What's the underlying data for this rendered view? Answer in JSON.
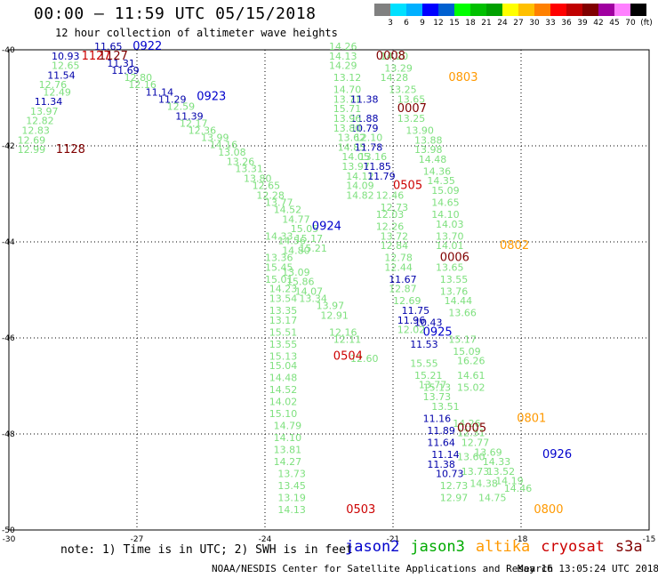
{
  "header": {
    "title": "00:00 — 11:59 UTC 05/15/2018",
    "subtitle": "12 hour collection of altimeter wave heights"
  },
  "colorbar": {
    "colors": [
      "#808080",
      "#00e0ff",
      "#00b0ff",
      "#0000ff",
      "#0060d0",
      "#00ff00",
      "#00c000",
      "#00a000",
      "#ffff00",
      "#ffc000",
      "#ff8000",
      "#ff0000",
      "#c00000",
      "#800000",
      "#a000a0",
      "#ff80ff",
      "#000000"
    ],
    "labels": [
      "3",
      "6",
      "9",
      "12",
      "15",
      "18",
      "21",
      "24",
      "27",
      "30",
      "33",
      "36",
      "39",
      "42",
      "45",
      "70",
      "(ft)"
    ]
  },
  "axes": {
    "lat_ticks": [
      "-40",
      "-42",
      "-44",
      "-46",
      "-48",
      "-50"
    ],
    "lon_ticks": [
      "-30",
      "-27",
      "-24",
      "-21",
      "-18",
      "-15"
    ]
  },
  "satellite_colors": {
    "jason2": "#0000cc",
    "jason3": "#00aa00",
    "altika": "#ff9900",
    "cryosat": "#cc0000",
    "s3a": "#800000",
    "swh": "#7ee07e",
    "swh_blue": "#0000aa"
  },
  "swh_points": [
    {
      "v": "10.93",
      "lon": -29.0,
      "lat": -40.2,
      "c": "swh_blue"
    },
    {
      "v": "11.65",
      "lon": -28.0,
      "lat": -40.0,
      "c": "swh_blue"
    },
    {
      "v": "12.65",
      "lon": -29.0,
      "lat": -40.4,
      "c": "swh"
    },
    {
      "v": "11.31",
      "lon": -27.7,
      "lat": -40.35,
      "c": "swh_blue"
    },
    {
      "v": "11.54",
      "lon": -29.1,
      "lat": -40.6,
      "c": "swh_blue"
    },
    {
      "v": "11.69",
      "lon": -27.6,
      "lat": -40.5,
      "c": "swh_blue"
    },
    {
      "v": "12.76",
      "lon": -29.3,
      "lat": -40.8,
      "c": "swh"
    },
    {
      "v": "12.80",
      "lon": -27.3,
      "lat": -40.65,
      "c": "swh"
    },
    {
      "v": "12.49",
      "lon": -29.2,
      "lat": -40.95,
      "c": "swh"
    },
    {
      "v": "12.16",
      "lon": -27.2,
      "lat": -40.8,
      "c": "swh"
    },
    {
      "v": "11.14",
      "lon": -26.8,
      "lat": -40.95,
      "c": "swh_blue"
    },
    {
      "v": "11.34",
      "lon": -29.4,
      "lat": -41.15,
      "c": "swh_blue"
    },
    {
      "v": "11.29",
      "lon": -26.5,
      "lat": -41.1,
      "c": "swh_blue"
    },
    {
      "v": "13.97",
      "lon": -29.5,
      "lat": -41.35,
      "c": "swh"
    },
    {
      "v": "12.59",
      "lon": -26.3,
      "lat": -41.25,
      "c": "swh"
    },
    {
      "v": "11.39",
      "lon": -26.1,
      "lat": -41.45,
      "c": "swh_blue"
    },
    {
      "v": "12.82",
      "lon": -29.6,
      "lat": -41.55,
      "c": "swh"
    },
    {
      "v": "12.17",
      "lon": -26.0,
      "lat": -41.6,
      "c": "swh"
    },
    {
      "v": "12.83",
      "lon": -29.7,
      "lat": -41.75,
      "c": "swh"
    },
    {
      "v": "12.36",
      "lon": -25.8,
      "lat": -41.75,
      "c": "swh"
    },
    {
      "v": "12.69",
      "lon": -29.8,
      "lat": -41.95,
      "c": "swh"
    },
    {
      "v": "13.99",
      "lon": -25.5,
      "lat": -41.9,
      "c": "swh"
    },
    {
      "v": "12.99",
      "lon": -29.8,
      "lat": -42.15,
      "c": "swh"
    },
    {
      "v": "14.16",
      "lon": -25.3,
      "lat": -42.05,
      "c": "swh"
    },
    {
      "v": "13.08",
      "lon": -25.1,
      "lat": -42.2,
      "c": "swh"
    },
    {
      "v": "13.26",
      "lon": -24.9,
      "lat": -42.4,
      "c": "swh"
    },
    {
      "v": "13.31",
      "lon": -24.7,
      "lat": -42.55,
      "c": "swh"
    },
    {
      "v": "13.80",
      "lon": -24.5,
      "lat": -42.75,
      "c": "swh"
    },
    {
      "v": "12.65",
      "lon": -24.3,
      "lat": -42.9,
      "c": "swh"
    },
    {
      "v": "12.28",
      "lon": -24.2,
      "lat": -43.1,
      "c": "swh"
    },
    {
      "v": "13.77",
      "lon": -24.0,
      "lat": -43.25,
      "c": "swh"
    },
    {
      "v": "14.52",
      "lon": -23.8,
      "lat": -43.4,
      "c": "swh"
    },
    {
      "v": "14.77",
      "lon": -23.6,
      "lat": -43.6,
      "c": "swh"
    },
    {
      "v": "15.05",
      "lon": -23.4,
      "lat": -43.8,
      "c": "swh"
    },
    {
      "v": "15.17",
      "lon": -23.3,
      "lat": -44.0,
      "c": "swh"
    },
    {
      "v": "15.21",
      "lon": -23.2,
      "lat": -44.2,
      "c": "swh"
    },
    {
      "v": "14.26",
      "lon": -22.5,
      "lat": -40.0,
      "c": "swh"
    },
    {
      "v": "14.13",
      "lon": -22.5,
      "lat": -40.2,
      "c": "swh"
    },
    {
      "v": "14.20",
      "lon": -21.3,
      "lat": -40.2,
      "c": "swh"
    },
    {
      "v": "14.29",
      "lon": -22.5,
      "lat": -40.4,
      "c": "swh"
    },
    {
      "v": "13.29",
      "lon": -21.2,
      "lat": -40.45,
      "c": "swh"
    },
    {
      "v": "13.12",
      "lon": -22.4,
      "lat": -40.65,
      "c": "swh"
    },
    {
      "v": "14.28",
      "lon": -21.3,
      "lat": -40.65,
      "c": "swh"
    },
    {
      "v": "14.70",
      "lon": -22.4,
      "lat": -40.9,
      "c": "swh"
    },
    {
      "v": "13.25",
      "lon": -21.1,
      "lat": -40.9,
      "c": "swh"
    },
    {
      "v": "13.71",
      "lon": -22.4,
      "lat": -41.1,
      "c": "swh"
    },
    {
      "v": "11.38",
      "lon": -22.0,
      "lat": -41.1,
      "c": "swh_blue"
    },
    {
      "v": "13.65",
      "lon": -20.9,
      "lat": -41.1,
      "c": "swh"
    },
    {
      "v": "15.71",
      "lon": -22.4,
      "lat": -41.3,
      "c": "swh"
    },
    {
      "v": "11.88",
      "lon": -22.0,
      "lat": -41.5,
      "c": "swh_blue"
    },
    {
      "v": "13.25",
      "lon": -20.9,
      "lat": -41.5,
      "c": "swh"
    },
    {
      "v": "13.96",
      "lon": -22.4,
      "lat": -41.5,
      "c": "swh"
    },
    {
      "v": "10.79",
      "lon": -22.0,
      "lat": -41.7,
      "c": "swh_blue"
    },
    {
      "v": "13.80",
      "lon": -22.4,
      "lat": -41.7,
      "c": "swh"
    },
    {
      "v": "13.90",
      "lon": -20.7,
      "lat": -41.75,
      "c": "swh"
    },
    {
      "v": "13.62",
      "lon": -22.3,
      "lat": -41.9,
      "c": "swh"
    },
    {
      "v": "12.10",
      "lon": -21.9,
      "lat": -41.9,
      "c": "swh"
    },
    {
      "v": "13.88",
      "lon": -20.5,
      "lat": -41.95,
      "c": "swh"
    },
    {
      "v": "14.85",
      "lon": -22.3,
      "lat": -42.1,
      "c": "swh"
    },
    {
      "v": "11.78",
      "lon": -21.9,
      "lat": -42.1,
      "c": "swh_blue"
    },
    {
      "v": "13.98",
      "lon": -20.5,
      "lat": -42.15,
      "c": "swh"
    },
    {
      "v": "14.05",
      "lon": -22.2,
      "lat": -42.3,
      "c": "swh"
    },
    {
      "v": "13.16",
      "lon": -21.8,
      "lat": -42.3,
      "c": "swh"
    },
    {
      "v": "14.48",
      "lon": -20.4,
      "lat": -42.35,
      "c": "swh"
    },
    {
      "v": "13.97",
      "lon": -22.2,
      "lat": -42.5,
      "c": "swh"
    },
    {
      "v": "11.85",
      "lon": -21.7,
      "lat": -42.5,
      "c": "swh_blue"
    },
    {
      "v": "14.36",
      "lon": -20.3,
      "lat": -42.6,
      "c": "swh"
    },
    {
      "v": "14.12",
      "lon": -22.1,
      "lat": -42.7,
      "c": "swh"
    },
    {
      "v": "11.79",
      "lon": -21.6,
      "lat": -42.7,
      "c": "swh_blue"
    },
    {
      "v": "14.35",
      "lon": -20.2,
      "lat": -42.8,
      "c": "swh"
    },
    {
      "v": "14.09",
      "lon": -22.1,
      "lat": -42.9,
      "c": "swh"
    },
    {
      "v": "15.09",
      "lon": -20.1,
      "lat": -43.0,
      "c": "swh"
    },
    {
      "v": "14.82",
      "lon": -22.1,
      "lat": -43.1,
      "c": "swh"
    },
    {
      "v": "12.46",
      "lon": -21.4,
      "lat": -43.1,
      "c": "swh"
    },
    {
      "v": "14.65",
      "lon": -20.1,
      "lat": -43.25,
      "c": "swh"
    },
    {
      "v": "12.73",
      "lon": -21.3,
      "lat": -43.35,
      "c": "swh"
    },
    {
      "v": "14.10",
      "lon": -20.1,
      "lat": -43.5,
      "c": "swh"
    },
    {
      "v": "12.03",
      "lon": -21.4,
      "lat": -43.5,
      "c": "swh"
    },
    {
      "v": "14.03",
      "lon": -20.0,
      "lat": -43.7,
      "c": "swh"
    },
    {
      "v": "12.26",
      "lon": -21.4,
      "lat": -43.75,
      "c": "swh"
    },
    {
      "v": "13.72",
      "lon": -21.3,
      "lat": -43.95,
      "c": "swh"
    },
    {
      "v": "13.70",
      "lon": -20.0,
      "lat": -43.95,
      "c": "swh"
    },
    {
      "v": "12.84",
      "lon": -21.3,
      "lat": -44.15,
      "c": "swh"
    },
    {
      "v": "14.01",
      "lon": -20.0,
      "lat": -44.15,
      "c": "swh"
    },
    {
      "v": "12.78",
      "lon": -21.2,
      "lat": -44.4,
      "c": "swh"
    },
    {
      "v": "12.44",
      "lon": -21.2,
      "lat": -44.6,
      "c": "swh"
    },
    {
      "v": "13.65",
      "lon": -20.0,
      "lat": -44.6,
      "c": "swh"
    },
    {
      "v": "11.67",
      "lon": -21.1,
      "lat": -44.85,
      "c": "swh_blue"
    },
    {
      "v": "13.55",
      "lon": -19.9,
      "lat": -44.85,
      "c": "swh"
    },
    {
      "v": "12.87",
      "lon": -21.1,
      "lat": -45.05,
      "c": "swh"
    },
    {
      "v": "13.76",
      "lon": -19.9,
      "lat": -45.1,
      "c": "swh"
    },
    {
      "v": "12.69",
      "lon": -21.0,
      "lat": -45.3,
      "c": "swh"
    },
    {
      "v": "14.44",
      "lon": -19.8,
      "lat": -45.3,
      "c": "swh"
    },
    {
      "v": "11.75",
      "lon": -20.8,
      "lat": -45.5,
      "c": "swh_blue"
    },
    {
      "v": "13.66",
      "lon": -19.7,
      "lat": -45.55,
      "c": "swh"
    },
    {
      "v": "11.96",
      "lon": -20.9,
      "lat": -45.7,
      "c": "swh_blue"
    },
    {
      "v": "10.43",
      "lon": -20.5,
      "lat": -45.75,
      "c": "swh_blue"
    },
    {
      "v": "12.02",
      "lon": -20.9,
      "lat": -45.9,
      "c": "swh"
    },
    {
      "v": "15.17",
      "lon": -19.7,
      "lat": -46.1,
      "c": "swh"
    },
    {
      "v": "11.53",
      "lon": -20.6,
      "lat": -46.2,
      "c": "swh_blue"
    },
    {
      "v": "15.09",
      "lon": -19.6,
      "lat": -46.35,
      "c": "swh"
    },
    {
      "v": "15.55",
      "lon": -20.6,
      "lat": -46.6,
      "c": "swh"
    },
    {
      "v": "16.26",
      "lon": -19.5,
      "lat": -46.55,
      "c": "swh"
    },
    {
      "v": "15.21",
      "lon": -20.5,
      "lat": -46.85,
      "c": "swh"
    },
    {
      "v": "14.61",
      "lon": -19.5,
      "lat": -46.85,
      "c": "swh"
    },
    {
      "v": "13.77",
      "lon": -20.4,
      "lat": -47.05,
      "c": "swh"
    },
    {
      "v": "15.02",
      "lon": -19.5,
      "lat": -47.1,
      "c": "swh"
    },
    {
      "v": "15.13",
      "lon": -20.3,
      "lat": -47.1,
      "c": "swh"
    },
    {
      "v": "13.73",
      "lon": -20.3,
      "lat": -47.3,
      "c": "swh"
    },
    {
      "v": "13.51",
      "lon": -20.1,
      "lat": -47.5,
      "c": "swh"
    },
    {
      "v": "11.16",
      "lon": -20.3,
      "lat": -47.75,
      "c": "swh_blue"
    },
    {
      "v": "11.89",
      "lon": -20.2,
      "lat": -48.0,
      "c": "swh_blue"
    },
    {
      "v": "14.26",
      "lon": -19.6,
      "lat": -47.85,
      "c": "swh"
    },
    {
      "v": "12.31",
      "lon": -19.5,
      "lat": -48.05,
      "c": "swh"
    },
    {
      "v": "11.64",
      "lon": -20.2,
      "lat": -48.25,
      "c": "swh_blue"
    },
    {
      "v": "12.77",
      "lon": -19.4,
      "lat": -48.25,
      "c": "swh"
    },
    {
      "v": "11.14",
      "lon": -20.1,
      "lat": -48.5,
      "c": "swh_blue"
    },
    {
      "v": "13.69",
      "lon": -19.1,
      "lat": -48.45,
      "c": "swh"
    },
    {
      "v": "13.60",
      "lon": -19.5,
      "lat": -48.55,
      "c": "swh"
    },
    {
      "v": "11.38",
      "lon": -20.2,
      "lat": -48.7,
      "c": "swh_blue"
    },
    {
      "v": "14.33",
      "lon": -18.9,
      "lat": -48.65,
      "c": "swh"
    },
    {
      "v": "10.73",
      "lon": -20.0,
      "lat": -48.9,
      "c": "swh_blue"
    },
    {
      "v": "13.73",
      "lon": -19.4,
      "lat": -48.85,
      "c": "swh"
    },
    {
      "v": "13.52",
      "lon": -18.8,
      "lat": -48.85,
      "c": "swh"
    },
    {
      "v": "14.19",
      "lon": -18.6,
      "lat": -49.05,
      "c": "swh"
    },
    {
      "v": "12.73",
      "lon": -19.9,
      "lat": -49.15,
      "c": "swh"
    },
    {
      "v": "14.38",
      "lon": -19.2,
      "lat": -49.1,
      "c": "swh"
    },
    {
      "v": "14.46",
      "lon": -18.4,
      "lat": -49.2,
      "c": "swh"
    },
    {
      "v": "12.97",
      "lon": -19.9,
      "lat": -49.4,
      "c": "swh"
    },
    {
      "v": "14.75",
      "lon": -19.0,
      "lat": -49.4,
      "c": "swh"
    },
    {
      "v": "14.33",
      "lon": -24.0,
      "lat": -43.95,
      "c": "swh"
    },
    {
      "v": "14.56",
      "lon": -23.7,
      "lat": -44.05,
      "c": "swh"
    },
    {
      "v": "14.80",
      "lon": -23.6,
      "lat": -44.25,
      "c": "swh"
    },
    {
      "v": "13.36",
      "lon": -24.0,
      "lat": -44.4,
      "c": "swh"
    },
    {
      "v": "15.45",
      "lon": -24.0,
      "lat": -44.6,
      "c": "swh"
    },
    {
      "v": "13.09",
      "lon": -23.6,
      "lat": -44.7,
      "c": "swh"
    },
    {
      "v": "15.01",
      "lon": -24.0,
      "lat": -44.85,
      "c": "swh"
    },
    {
      "v": "15.86",
      "lon": -23.5,
      "lat": -44.9,
      "c": "swh"
    },
    {
      "v": "14.23",
      "lon": -23.9,
      "lat": -45.05,
      "c": "swh"
    },
    {
      "v": "14.07",
      "lon": -23.3,
      "lat": -45.1,
      "c": "swh"
    },
    {
      "v": "13.54",
      "lon": -23.9,
      "lat": -45.25,
      "c": "swh"
    },
    {
      "v": "13.34",
      "lon": -23.2,
      "lat": -45.25,
      "c": "swh"
    },
    {
      "v": "13.97",
      "lon": -22.8,
      "lat": -45.4,
      "c": "swh"
    },
    {
      "v": "13.35",
      "lon": -23.9,
      "lat": -45.5,
      "c": "swh"
    },
    {
      "v": "12.91",
      "lon": -22.7,
      "lat": -45.6,
      "c": "swh"
    },
    {
      "v": "13.17",
      "lon": -23.9,
      "lat": -45.7,
      "c": "swh"
    },
    {
      "v": "15.51",
      "lon": -23.9,
      "lat": -45.95,
      "c": "swh"
    },
    {
      "v": "12.16",
      "lon": -22.5,
      "lat": -45.95,
      "c": "swh"
    },
    {
      "v": "12.11",
      "lon": -22.4,
      "lat": -46.1,
      "c": "swh"
    },
    {
      "v": "13.55",
      "lon": -23.9,
      "lat": -46.2,
      "c": "swh"
    },
    {
      "v": "15.13",
      "lon": -23.9,
      "lat": -46.45,
      "c": "swh"
    },
    {
      "v": "15.04",
      "lon": -23.9,
      "lat": -46.65,
      "c": "swh"
    },
    {
      "v": "12.60",
      "lon": -22.0,
      "lat": -46.5,
      "c": "swh"
    },
    {
      "v": "14.48",
      "lon": -23.9,
      "lat": -46.9,
      "c": "swh"
    },
    {
      "v": "14.52",
      "lon": -23.9,
      "lat": -47.15,
      "c": "swh"
    },
    {
      "v": "14.02",
      "lon": -23.9,
      "lat": -47.4,
      "c": "swh"
    },
    {
      "v": "15.10",
      "lon": -23.9,
      "lat": -47.65,
      "c": "swh"
    },
    {
      "v": "14.79",
      "lon": -23.8,
      "lat": -47.9,
      "c": "swh"
    },
    {
      "v": "14.10",
      "lon": -23.8,
      "lat": -48.15,
      "c": "swh"
    },
    {
      "v": "13.81",
      "lon": -23.8,
      "lat": -48.4,
      "c": "swh"
    },
    {
      "v": "14.27",
      "lon": -23.8,
      "lat": -48.65,
      "c": "swh"
    },
    {
      "v": "13.73",
      "lon": -23.7,
      "lat": -48.9,
      "c": "swh"
    },
    {
      "v": "13.45",
      "lon": -23.7,
      "lat": -49.15,
      "c": "swh"
    },
    {
      "v": "13.19",
      "lon": -23.7,
      "lat": -49.4,
      "c": "swh"
    },
    {
      "v": "14.13",
      "lon": -23.7,
      "lat": -49.65,
      "c": "swh"
    }
  ],
  "pass_labels": [
    {
      "t": "0922",
      "lon": -27.1,
      "lat": -40.0,
      "c": "jason2"
    },
    {
      "t": "1127",
      "lon": -28.3,
      "lat": -40.2,
      "c": "cryosat"
    },
    {
      "t": "1127",
      "lon": -27.9,
      "lat": -40.2,
      "c": "s3a"
    },
    {
      "t": "0923",
      "lon": -25.6,
      "lat": -41.05,
      "c": "jason2"
    },
    {
      "t": "1128",
      "lon": -28.9,
      "lat": -42.15,
      "c": "s3a"
    },
    {
      "t": "0008",
      "lon": -21.4,
      "lat": -40.2,
      "c": "s3a"
    },
    {
      "t": "0803",
      "lon": -19.7,
      "lat": -40.65,
      "c": "altika"
    },
    {
      "t": "0007",
      "lon": -20.9,
      "lat": -41.3,
      "c": "s3a"
    },
    {
      "t": "0505",
      "lon": -21.0,
      "lat": -42.9,
      "c": "cryosat"
    },
    {
      "t": "0924",
      "lon": -22.9,
      "lat": -43.75,
      "c": "jason2"
    },
    {
      "t": "0802",
      "lon": -18.5,
      "lat": -44.15,
      "c": "altika"
    },
    {
      "t": "0006",
      "lon": -19.9,
      "lat": -44.4,
      "c": "s3a"
    },
    {
      "t": "0504",
      "lon": -22.4,
      "lat": -46.45,
      "c": "cryosat"
    },
    {
      "t": "0925",
      "lon": -20.3,
      "lat": -45.95,
      "c": "jason2"
    },
    {
      "t": "0801",
      "lon": -18.1,
      "lat": -47.75,
      "c": "altika"
    },
    {
      "t": "0005",
      "lon": -19.5,
      "lat": -47.95,
      "c": "s3a"
    },
    {
      "t": "0926",
      "lon": -17.5,
      "lat": -48.5,
      "c": "jason2"
    },
    {
      "t": "0800",
      "lon": -17.7,
      "lat": -49.65,
      "c": "altika"
    },
    {
      "t": "0503",
      "lon": -22.1,
      "lat": -49.65,
      "c": "cryosat"
    }
  ],
  "footer": {
    "note": "note: 1) Time is in UTC; 2) SWH is in feet",
    "legend": [
      {
        "name": "jason2",
        "c": "jason2"
      },
      {
        "name": "jason3",
        "c": "jason3"
      },
      {
        "name": "altika",
        "c": "altika"
      },
      {
        "name": "cryosat",
        "c": "cryosat"
      },
      {
        "name": "s3a",
        "c": "s3a"
      }
    ],
    "credit": "NOAA/NESDIS Center for Satellite Applications and Research",
    "timestamp": "May 16 13:05:24 UTC 2018"
  }
}
